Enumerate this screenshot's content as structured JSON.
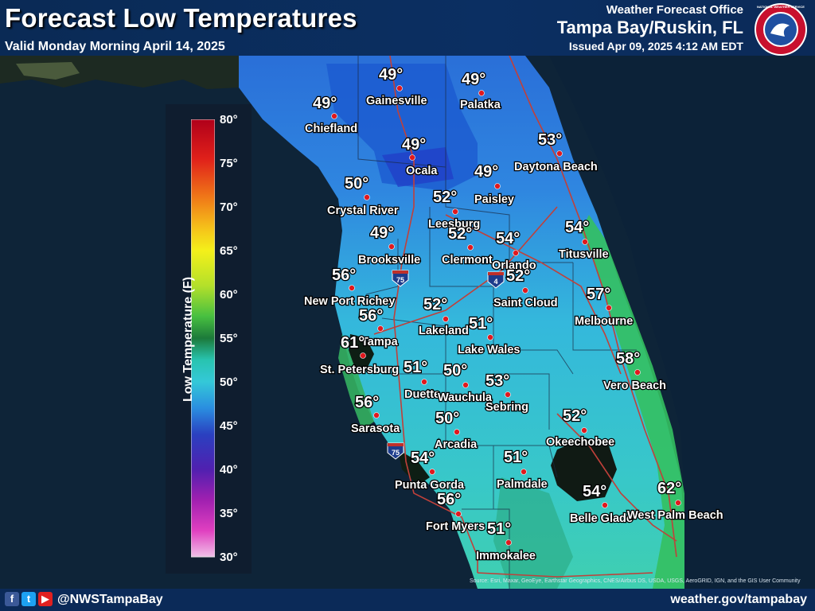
{
  "header": {
    "title": "Forecast Low Temperatures",
    "subtitle": "Valid Monday Morning April 14, 2025",
    "office_label": "Weather Forecast Office",
    "office_name": "Tampa Bay/Ruskin, FL",
    "issued": "Issued Apr 09, 2025 4:12 AM EDT",
    "logo_text": "NATIONAL WEATHER SERVICE"
  },
  "legend": {
    "title": "Low Temperature (F)",
    "ticks": [
      "80°",
      "75°",
      "70°",
      "65°",
      "60°",
      "55°",
      "50°",
      "45°",
      "40°",
      "35°",
      "30°"
    ]
  },
  "interstates": [
    "75",
    "4",
    "75"
  ],
  "cities": [
    {
      "name": "Gainesville",
      "temp": "49°"
    },
    {
      "name": "Palatka",
      "temp": "49°"
    },
    {
      "name": "Chiefland",
      "temp": "49°"
    },
    {
      "name": "Daytona Beach",
      "temp": "53°"
    },
    {
      "name": "Ocala",
      "temp": "49°"
    },
    {
      "name": "Paisley",
      "temp": "49°"
    },
    {
      "name": "Crystal River",
      "temp": "50°"
    },
    {
      "name": "Leesburg",
      "temp": "52°"
    },
    {
      "name": "Clermont",
      "temp": "52°"
    },
    {
      "name": "Orlando",
      "temp": "54°"
    },
    {
      "name": "Titusville",
      "temp": "54°"
    },
    {
      "name": "Brooksville",
      "temp": "49°"
    },
    {
      "name": "New Port Richey",
      "temp": "56°"
    },
    {
      "name": "Saint Cloud",
      "temp": "52°"
    },
    {
      "name": "Melbourne",
      "temp": "57°"
    },
    {
      "name": "Tampa",
      "temp": "56°"
    },
    {
      "name": "Lakeland",
      "temp": "52°"
    },
    {
      "name": "St. Petersburg",
      "temp": "61°"
    },
    {
      "name": "Lake Wales",
      "temp": "51°"
    },
    {
      "name": "Vero Beach",
      "temp": "58°"
    },
    {
      "name": "Duette",
      "temp": "51°"
    },
    {
      "name": "Wauchula",
      "temp": "50°"
    },
    {
      "name": "Sebring",
      "temp": "53°"
    },
    {
      "name": "Sarasota",
      "temp": "56°"
    },
    {
      "name": "Okeechobee",
      "temp": "52°"
    },
    {
      "name": "Arcadia",
      "temp": "50°"
    },
    {
      "name": "Punta Gorda",
      "temp": "54°"
    },
    {
      "name": "Palmdale",
      "temp": "51°"
    },
    {
      "name": "Belle Glade",
      "temp": "54°"
    },
    {
      "name": "West Palm Beach",
      "temp": "62°"
    },
    {
      "name": "Fort Myers",
      "temp": "56°"
    },
    {
      "name": "Immokalee",
      "temp": "51°"
    }
  ],
  "source_text": "Source: Esri, Maxar, GeoEye, Earthstar Geographics, CNES/Airbus DS, USDA, USGS, AeroGRID, IGN, and the GIS User Community",
  "footer": {
    "handle": "@NWSTampaBay",
    "website": "weather.gov/tampabay",
    "social_icons": [
      "facebook-icon",
      "twitter-icon",
      "youtube-icon"
    ]
  }
}
